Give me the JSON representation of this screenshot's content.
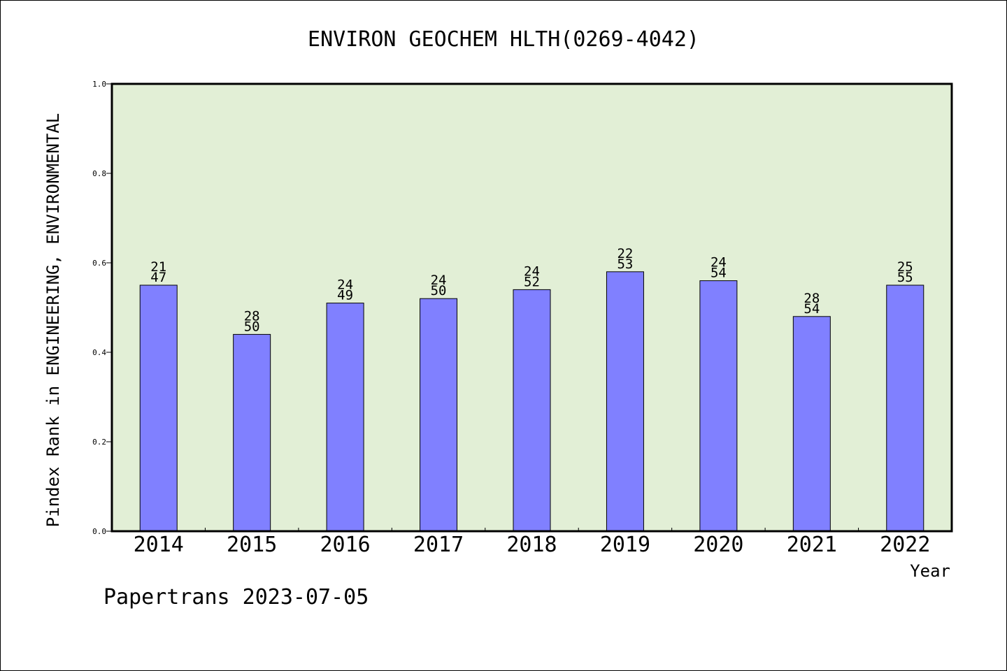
{
  "colors": {
    "plot_background": "#e2efd6",
    "bar_fill": "#8080ff",
    "bar_stroke": "#000000",
    "axis": "#000000"
  },
  "chart_data": {
    "type": "bar",
    "title": "ENVIRON GEOCHEM HLTH(0269-4042)",
    "xlabel": "Year",
    "ylabel": "Pindex Rank in ENGINEERING, ENVIRONMENTAL",
    "ylim": [
      0.0,
      1.0
    ],
    "yticks": [
      "0.0",
      "0.2",
      "0.4",
      "0.6",
      "0.8",
      "1.0"
    ],
    "grid": false,
    "categories": [
      "2014",
      "2015",
      "2016",
      "2017",
      "2018",
      "2019",
      "2020",
      "2021",
      "2022"
    ],
    "values": [
      0.55,
      0.44,
      0.51,
      0.52,
      0.54,
      0.58,
      0.56,
      0.48,
      0.55
    ],
    "labels_top": [
      "21",
      "28",
      "24",
      "24",
      "24",
      "22",
      "24",
      "28",
      "25"
    ],
    "labels_bottom": [
      "47",
      "50",
      "49",
      "50",
      "52",
      "53",
      "54",
      "54",
      "55"
    ]
  },
  "footer": "Papertrans 2023-07-05"
}
